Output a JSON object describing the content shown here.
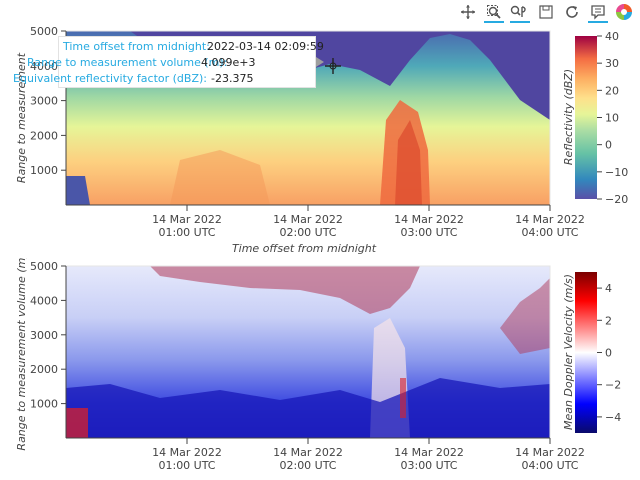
{
  "toolbar": {
    "tools": [
      {
        "name": "pan-tool",
        "icon": "move-icon",
        "active": false
      },
      {
        "name": "box-zoom-tool",
        "icon": "box-zoom-icon",
        "active": true
      },
      {
        "name": "wheel-zoom-tool",
        "icon": "wheel-zoom-icon",
        "active": true
      },
      {
        "name": "save-tool",
        "icon": "save-icon",
        "active": false
      },
      {
        "name": "reset-tool",
        "icon": "reset-icon",
        "active": false
      },
      {
        "name": "hover-tool",
        "icon": "hover-icon",
        "active": true
      },
      {
        "name": "bokeh-logo",
        "icon": "bokeh-logo-icon",
        "active": false
      }
    ]
  },
  "tooltip": {
    "rows": [
      {
        "label": "Time offset from midnight:",
        "value": "2022-03-14 02:09:59"
      },
      {
        "label": "Range to measurement volume (m):",
        "value": "4.099e+3"
      },
      {
        "label": "Equivalent reflectivity factor (dBZ):",
        "value": "-23.375"
      }
    ]
  },
  "chart_data": [
    {
      "type": "heatmap",
      "title": "",
      "xlabel": "Time offset from midnight",
      "ylabel": "Range to measurement",
      "x_range": [
        "2022-03-14 00:00",
        "2022-03-14 04:00"
      ],
      "ylim": [
        0,
        5000
      ],
      "x_ticks": [
        {
          "line1": "14 Mar 2022",
          "line2": "01:00 UTC"
        },
        {
          "line1": "14 Mar 2022",
          "line2": "02:00 UTC"
        },
        {
          "line1": "14 Mar 2022",
          "line2": "03:00 UTC"
        },
        {
          "line1": "14 Mar 2022",
          "line2": "04:00 UTC"
        }
      ],
      "y_ticks": [
        "1000",
        "2000",
        "3000",
        "4000",
        "5000"
      ],
      "colorbar": {
        "label": "Reflectivity (dBZ)",
        "range": [
          -20,
          40
        ],
        "ticks": [
          "40",
          "30",
          "20",
          "10",
          "0",
          "−10",
          "−20"
        ],
        "colormap": "spectral"
      }
    },
    {
      "type": "heatmap",
      "title": "",
      "xlabel": "",
      "ylabel": "Range to measurement volume (m)",
      "x_range": [
        "2022-03-14 00:00",
        "2022-03-14 04:00"
      ],
      "ylim": [
        0,
        5000
      ],
      "x_ticks": [
        {
          "line1": "14 Mar 2022",
          "line2": "01:00 UTC"
        },
        {
          "line1": "14 Mar 2022",
          "line2": "02:00 UTC"
        },
        {
          "line1": "14 Mar 2022",
          "line2": "03:00 UTC"
        },
        {
          "line1": "14 Mar 2022",
          "line2": "04:00 UTC"
        }
      ],
      "y_ticks": [
        "1000",
        "2000",
        "3000",
        "4000",
        "5000"
      ],
      "colorbar": {
        "label": "Mean Doppler Velocity (m/s)",
        "range": [
          -5,
          5
        ],
        "ticks": [
          "4",
          "2",
          "0",
          "−2",
          "−4"
        ],
        "colormap": "blue-white-red"
      }
    }
  ]
}
